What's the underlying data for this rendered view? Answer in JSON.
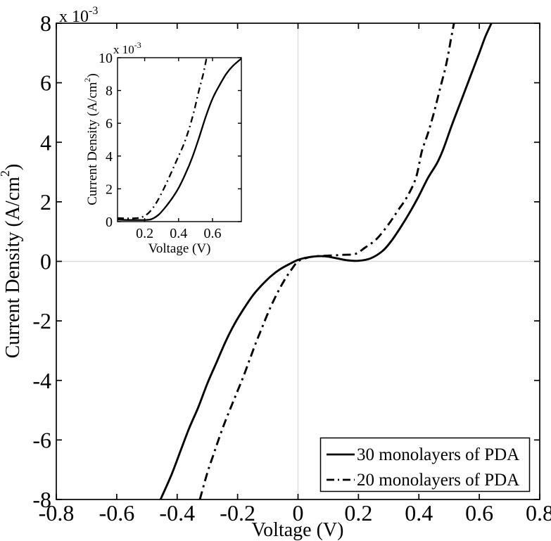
{
  "figure": {
    "background": "#ffffff",
    "axis_color": "#000000",
    "curve_color": "#000000",
    "zero_line_color": "#dcdcdc",
    "main": {
      "exponent_base": "x 10",
      "exponent_sup": "-3",
      "xlabel": "Voltage (V)",
      "ylabel_pre": "Current Density (A/cm",
      "ylabel_sup": "2",
      "ylabel_post": ")"
    },
    "inset": {
      "exponent_base": "x 10",
      "exponent_sup": "-3",
      "xlabel": "Voltage (V)",
      "ylabel_pre": "Current Density (A/cm",
      "ylabel_sup": "2",
      "ylabel_post": ")"
    },
    "legend": {
      "entries": [
        {
          "label": "30 monolayers of PDA",
          "style": "solid"
        },
        {
          "label": "20 monolayers of PDA",
          "style": "dash-dot"
        }
      ]
    }
  },
  "chart_data": [
    {
      "id": "main",
      "type": "line",
      "title": "",
      "xlabel": "Voltage (V)",
      "ylabel": "Current Density (A/cm2)",
      "y_unit_note": "y values are in units of 1e-3 A/cm2 (axis exponent x 10^-3)",
      "xlim": [
        -0.8,
        0.8
      ],
      "ylim": [
        -8,
        8
      ],
      "x_ticks": [
        -0.8,
        -0.6,
        -0.4,
        -0.2,
        0,
        0.2,
        0.4,
        0.6,
        0.8
      ],
      "y_ticks": [
        -8,
        -6,
        -4,
        -2,
        0,
        2,
        4,
        6,
        8
      ],
      "grid": false,
      "zero_lines": true,
      "legend_position": "lower right",
      "series": [
        {
          "name": "30 monolayers of PDA",
          "line_style": "solid",
          "x": [
            -0.455,
            -0.42,
            -0.39,
            -0.36,
            -0.33,
            -0.3,
            -0.27,
            -0.24,
            -0.21,
            -0.18,
            -0.15,
            -0.12,
            -0.09,
            -0.06,
            -0.03,
            0,
            0.03,
            0.06,
            0.09,
            0.12,
            0.16,
            0.2,
            0.24,
            0.28,
            0.31,
            0.34,
            0.37,
            0.4,
            0.43,
            0.46,
            0.48,
            0.51,
            0.54,
            0.57,
            0.6,
            0.62,
            0.64
          ],
          "y": [
            -8,
            -7.2,
            -6.4,
            -5.6,
            -4.9,
            -4.1,
            -3.4,
            -2.7,
            -2.1,
            -1.6,
            -1.15,
            -0.8,
            -0.5,
            -0.27,
            -0.1,
            0.05,
            0.13,
            0.17,
            0.17,
            0.12,
            0.04,
            0.02,
            0.1,
            0.35,
            0.7,
            1.15,
            1.65,
            2.2,
            2.8,
            3.3,
            3.75,
            4.6,
            5.4,
            6.2,
            7.0,
            7.55,
            8.0
          ]
        },
        {
          "name": "20 monolayers of PDA",
          "line_style": "dash-dot",
          "x": [
            -0.325,
            -0.3,
            -0.28,
            -0.26,
            -0.24,
            -0.22,
            -0.2,
            -0.18,
            -0.16,
            -0.14,
            -0.12,
            -0.1,
            -0.08,
            -0.06,
            -0.04,
            -0.02,
            0,
            0.03,
            0.06,
            0.09,
            0.12,
            0.15,
            0.19,
            0.22,
            0.26,
            0.3,
            0.33,
            0.36,
            0.39,
            0.41,
            0.43,
            0.45,
            0.47,
            0.49,
            0.505,
            0.516
          ],
          "y": [
            -8,
            -7.1,
            -6.5,
            -5.9,
            -5.35,
            -4.85,
            -4.35,
            -3.85,
            -3.3,
            -2.75,
            -2.25,
            -1.75,
            -1.3,
            -0.9,
            -0.55,
            -0.25,
            0.0,
            0.12,
            0.17,
            0.19,
            0.2,
            0.22,
            0.25,
            0.45,
            0.75,
            1.25,
            1.7,
            2.15,
            2.8,
            3.7,
            4.3,
            5.0,
            5.8,
            6.6,
            7.4,
            8.0
          ]
        }
      ]
    },
    {
      "id": "inset",
      "type": "line",
      "title": "",
      "xlabel": "Voltage (V)",
      "ylabel": "Current Density (A/cm2)",
      "y_unit_note": "y values are in units of 1e-3 A/cm2 (axis exponent x 10^-3)",
      "xlim": [
        0.04,
        0.77
      ],
      "ylim": [
        0,
        10
      ],
      "x_ticks": [
        0.2,
        0.4,
        0.6
      ],
      "y_ticks": [
        0,
        2,
        4,
        6,
        8,
        10
      ],
      "grid": false,
      "zero_lines": false,
      "legend_position": "none",
      "series": [
        {
          "name": "30 monolayers of PDA",
          "line_style": "solid",
          "x": [
            0.04,
            0.1,
            0.16,
            0.2,
            0.24,
            0.28,
            0.32,
            0.36,
            0.4,
            0.44,
            0.48,
            0.52,
            0.56,
            0.6,
            0.64,
            0.68,
            0.72,
            0.77
          ],
          "y": [
            0.12,
            0.1,
            0.1,
            0.1,
            0.15,
            0.4,
            0.85,
            1.4,
            2.05,
            2.9,
            3.9,
            5.1,
            6.4,
            7.5,
            8.3,
            9.0,
            9.5,
            9.95
          ]
        },
        {
          "name": "20 monolayers of PDA",
          "line_style": "dash-dot",
          "x": [
            0.04,
            0.08,
            0.12,
            0.16,
            0.19,
            0.22,
            0.25,
            0.28,
            0.31,
            0.34,
            0.37,
            0.4,
            0.43,
            0.46,
            0.49,
            0.52,
            0.545,
            0.565
          ],
          "y": [
            0.22,
            0.2,
            0.2,
            0.22,
            0.3,
            0.5,
            0.85,
            1.35,
            1.95,
            2.6,
            3.3,
            4.0,
            4.7,
            5.6,
            6.7,
            8.0,
            9.0,
            10.0
          ]
        }
      ]
    }
  ]
}
